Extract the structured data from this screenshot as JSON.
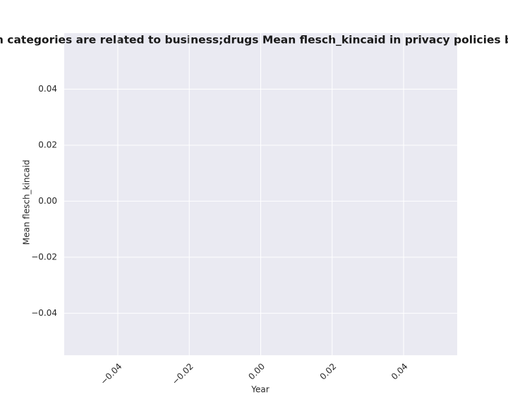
{
  "chart_data": {
    "type": "line",
    "title": "when categories are related to business;drugs Mean flesch_kincaid in privacy policies by Year",
    "x_label": "Year",
    "y_label": "Mean flesch_kincaid",
    "xlim": [
      -0.055,
      0.055
    ],
    "xticks": [
      {
        "value": -0.04,
        "label": "−0.04"
      },
      {
        "value": -0.02,
        "label": "−0.02"
      },
      {
        "value": 0,
        "label": "0.00"
      },
      0.02,
      0.04
    ],
    "ylim": [
      -0.055,
      0.06
    ],
    "yticks": [
      {
        "value": -0.04,
        "label": "−0.04"
      },
      {
        "value": -0.02,
        "label": "−0.02"
      },
      {
        "value": 0,
        "label": "0.00"
      },
      0.02,
      0.04
    ],
    "grid": true
  }
}
